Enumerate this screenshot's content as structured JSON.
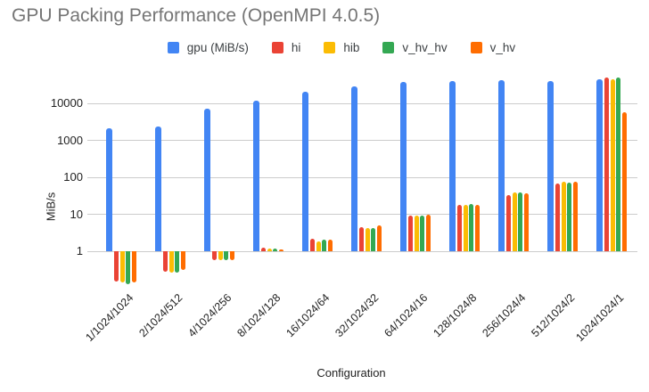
{
  "title": "GPU Packing Performance (OpenMPI 4.0.5)",
  "axes": {
    "y_title": "MiB/s",
    "x_title": "Configuration"
  },
  "colors": {
    "title_text": "#757575",
    "axis_text": "#222222",
    "legend_text": "#3c4043",
    "gridline": "#cccccc",
    "background": "#ffffff",
    "series_blue": "#4285F4",
    "series_red": "#EA4335",
    "series_yellow": "#FBBC04",
    "series_green": "#34A853",
    "series_orange": "#FF6D01"
  },
  "chart_data": {
    "type": "bar",
    "title": "GPU Packing Performance (OpenMPI 4.0.5)",
    "xlabel": "Configuration",
    "ylabel": "MiB/s",
    "y_scale": "log",
    "y_ticks": [
      1,
      10,
      100,
      1000,
      10000
    ],
    "ylim": [
      0.1,
      100000
    ],
    "grid": true,
    "legend_position": "top",
    "categories": [
      "1/1024/1024",
      "2/1024/512",
      "4/1024/256",
      "8/1024/128",
      "16/1024/64",
      "32/1024/32",
      "64/1024/16",
      "128/1024/8",
      "256/1024/4",
      "512/1024/2",
      "1024/1024/1"
    ],
    "series": [
      {
        "name": "gpu (MiB/s)",
        "color": "#4285F4",
        "values": [
          2100,
          2450,
          7500,
          11800,
          21500,
          30000,
          39500,
          41000,
          43500,
          42000,
          45500
        ]
      },
      {
        "name": "hi",
        "color": "#EA4335",
        "values": [
          0.15,
          0.28,
          0.57,
          1.25,
          2.2,
          4.6,
          9.3,
          18.5,
          34,
          67,
          51000
        ]
      },
      {
        "name": "hib",
        "color": "#FBBC04",
        "values": [
          0.14,
          0.27,
          0.56,
          1.2,
          1.8,
          4.2,
          9.0,
          18,
          39,
          78,
          45500
        ]
      },
      {
        "name": "v_hv_hv",
        "color": "#34A853",
        "values": [
          0.13,
          0.27,
          0.56,
          1.17,
          2.1,
          4.3,
          9.0,
          19.5,
          39,
          71,
          52500
        ]
      },
      {
        "name": "v_hv",
        "color": "#FF6D01",
        "values": [
          0.14,
          0.31,
          0.57,
          1.13,
          2.1,
          4.9,
          9.6,
          18.5,
          38,
          75,
          5900
        ]
      }
    ]
  }
}
